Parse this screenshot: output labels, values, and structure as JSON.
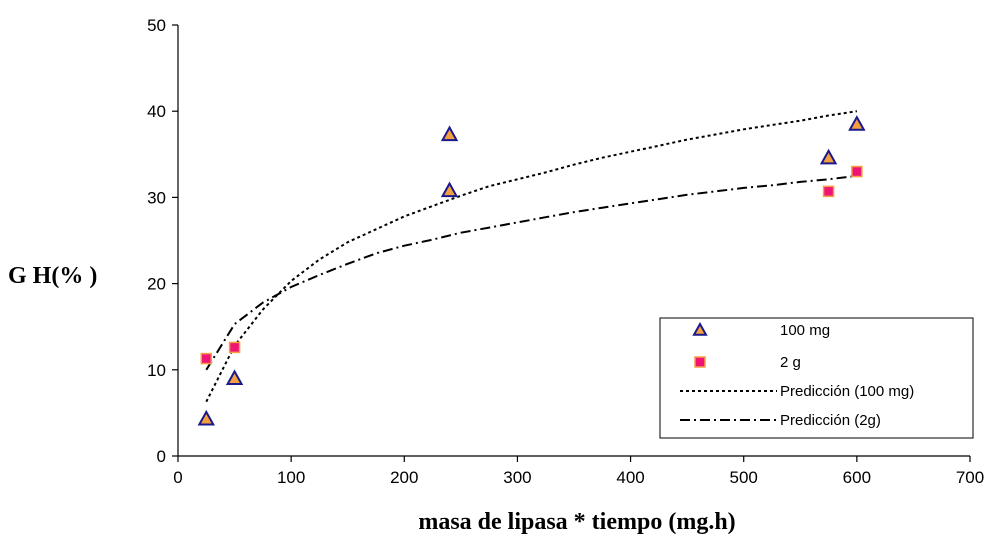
{
  "chart_data": {
    "type": "scatter",
    "xlabel": "masa de lipasa * tiempo (mg.h)",
    "ylabel": "G H(% )",
    "xlim": [
      0,
      700
    ],
    "ylim": [
      0,
      50
    ],
    "xticks": [
      0,
      100,
      200,
      300,
      400,
      500,
      600,
      700
    ],
    "yticks": [
      0,
      10,
      20,
      30,
      40,
      50
    ],
    "grid": false,
    "legend_position": "bottom-right",
    "series": [
      {
        "name": "100 mg",
        "kind": "markers",
        "marker": "triangle",
        "fill": "#f5a040",
        "stroke": "#1a1a8c",
        "x": [
          25,
          50,
          240,
          240,
          575,
          600
        ],
        "y": [
          4.3,
          9.0,
          37.3,
          30.8,
          34.6,
          38.5
        ]
      },
      {
        "name": "2 g",
        "kind": "markers",
        "marker": "square",
        "fill": "#f01478",
        "stroke": "#f5a040",
        "x": [
          25,
          50,
          575,
          600
        ],
        "y": [
          11.3,
          12.6,
          30.7,
          33.0
        ]
      },
      {
        "name": "Predicción (100 mg)",
        "kind": "line",
        "dash": "3,3",
        "stroke": "#000000",
        "x": [
          25,
          50,
          75,
          100,
          125,
          150,
          175,
          200,
          225,
          250,
          275,
          300,
          325,
          350,
          375,
          400,
          425,
          450,
          475,
          500,
          525,
          550,
          575,
          600
        ],
        "y": [
          6.3,
          12.8,
          17.0,
          20.3,
          22.8,
          24.8,
          26.3,
          27.8,
          29.0,
          30.2,
          31.3,
          32.1,
          32.9,
          33.8,
          34.6,
          35.3,
          36.0,
          36.7,
          37.3,
          37.9,
          38.4,
          38.9,
          39.5,
          40.0
        ]
      },
      {
        "name": "Predicción (2g)",
        "kind": "line",
        "dash": "10,4,2,4",
        "stroke": "#000000",
        "x": [
          25,
          50,
          75,
          100,
          125,
          150,
          175,
          200,
          225,
          250,
          275,
          300,
          325,
          350,
          375,
          400,
          425,
          450,
          475,
          500,
          525,
          550,
          575,
          600
        ],
        "y": [
          10.0,
          15.3,
          17.8,
          19.6,
          21.0,
          22.3,
          23.5,
          24.4,
          25.1,
          25.9,
          26.5,
          27.1,
          27.7,
          28.3,
          28.8,
          29.3,
          29.8,
          30.3,
          30.7,
          31.1,
          31.4,
          31.8,
          32.1,
          32.5
        ]
      }
    ]
  }
}
